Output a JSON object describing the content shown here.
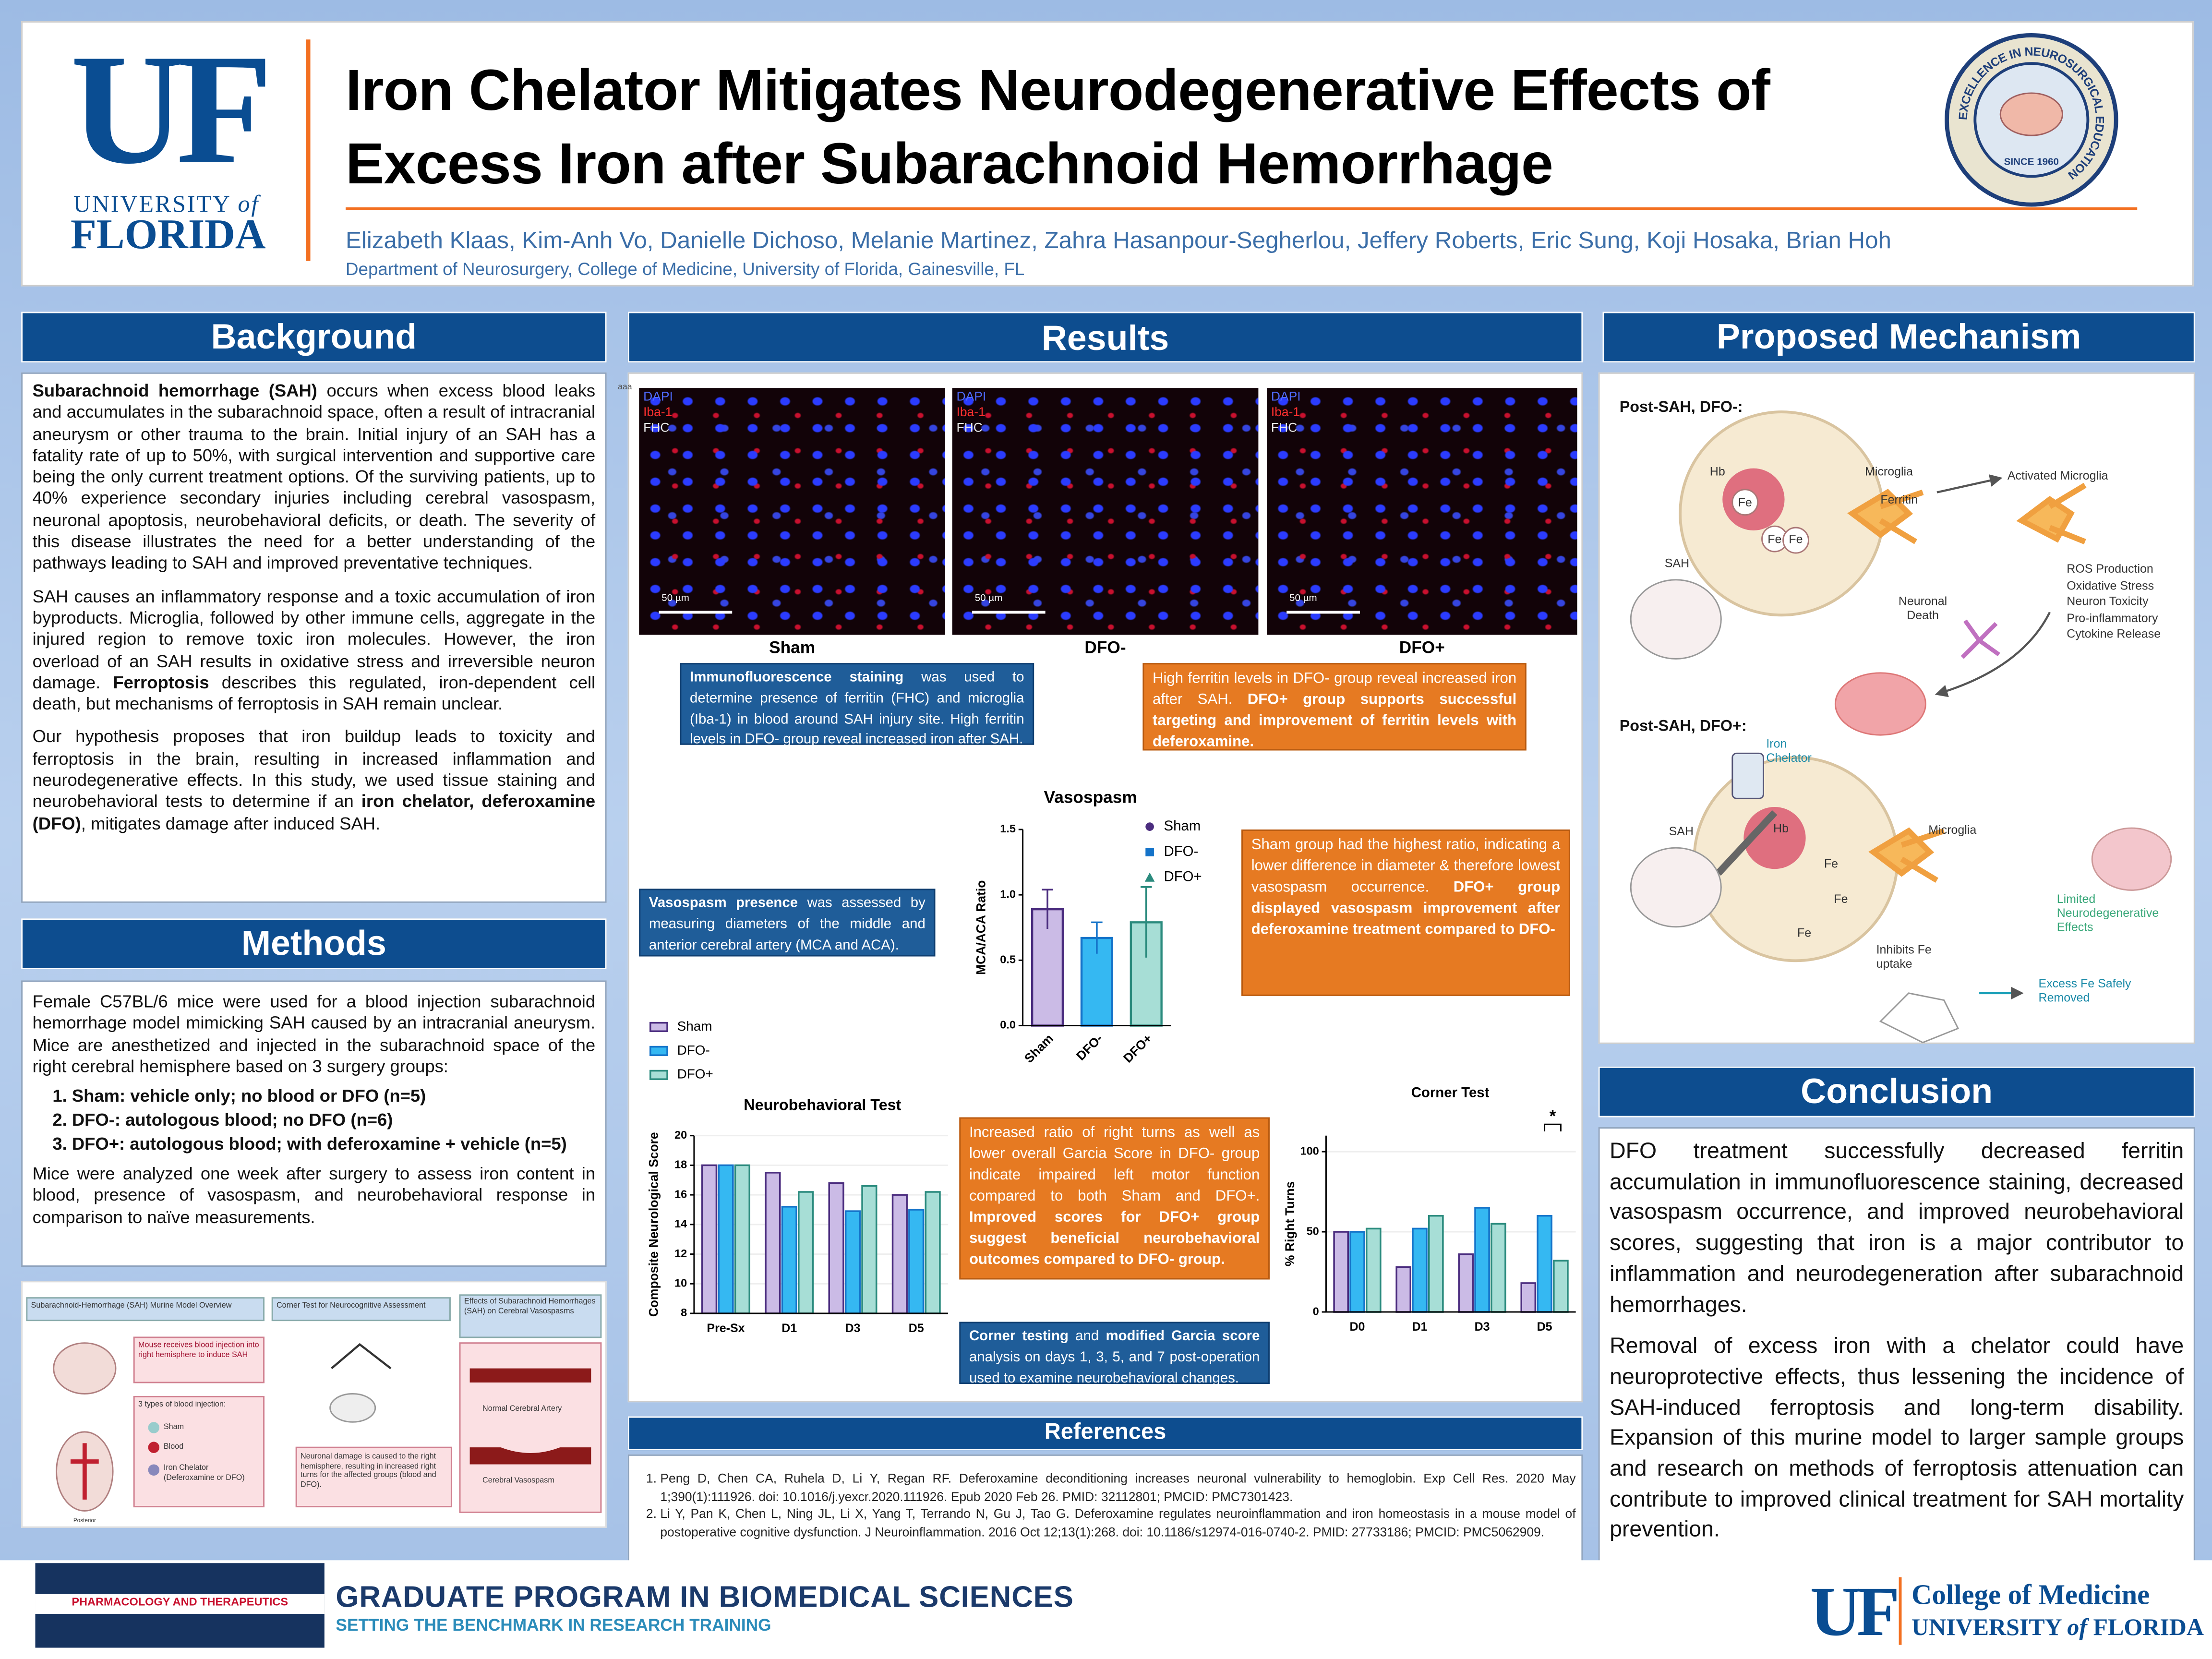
{
  "header": {
    "logo": {
      "mark": "UF",
      "university": "UNIVERSITY",
      "of": "of",
      "florida": "FLORIDA"
    },
    "title": "Iron Chelator Mitigates Neurodegenerative Effects of Excess Iron after Subarachnoid Hemorrhage",
    "authors": "Elizabeth Klaas, Kim-Anh Vo, Danielle Dichoso, Melanie Martinez, Zahra Hasanpour-Segherlou, Jeffery Roberts, Eric Sung, Koji Hosaka, Brian Hoh",
    "affiliation": "Department of Neurosurgery, College of Medicine, University of Florida, Gainesville, FL",
    "seal": {
      "ring": "EXCELLENCE IN NEUROSURGICAL EDUCATION",
      "since": "SINCE 1960"
    }
  },
  "background": {
    "heading": "Background",
    "paragraphs": [
      [
        {
          "bold": "Subarachnoid hemorrhage (SAH)"
        },
        " occurs when excess blood leaks and accumulates in the subarachnoid space, often a result of intracranial aneurysm or other trauma to the brain. Initial injury of an SAH has a fatality rate of up to 50%, with surgical intervention and supportive care being the only current treatment options. Of the surviving patients, up to 40% experience secondary injuries including cerebral vasospasm, neuronal apoptosis, neurobehavioral deficits, or death. The severity of this disease illustrates the need for a better understanding of the pathways leading to SAH and improved preventative techniques."
      ],
      [
        "SAH causes an inflammatory response and a toxic accumulation of iron byproducts. Microglia, followed by other immune cells, aggregate in the injured region to remove toxic iron molecules. However, the iron overload of an SAH results in oxidative stress and irreversible neuron damage. ",
        {
          "bold": "Ferroptosis"
        },
        " describes this regulated, iron-dependent cell death, but mechanisms of ferroptosis in SAH remain unclear."
      ],
      [
        "Our hypothesis proposes that iron buildup leads to toxicity and ferroptosis in the brain, resulting in increased inflammation and neurodegenerative effects. In this study, we used tissue staining and neurobehavioral tests to determine if an ",
        {
          "bold": "iron chelator, deferoxamine (DFO)"
        },
        ", mitigates damage after induced SAH."
      ]
    ]
  },
  "methods": {
    "heading": "Methods",
    "intro": "Female C57BL/6 mice were used for a blood injection subarachnoid hemorrhage model mimicking SAH caused by an intracranial aneurysm. Mice are anesthetized and injected in the subarachnoid space of the right cerebral hemisphere based on 3 surgery groups:",
    "groups": [
      "Sham: vehicle only; no blood or DFO (n=5)",
      "DFO-: autologous blood; no DFO (n=6)",
      "DFO+: autologous blood; with deferoxamine + vehicle (n=5)"
    ],
    "outro": "Mice were analyzed one week after surgery to assess iron content in blood, presence of vasospasm, and neurobehavioral response in comparison to naïve measurements.",
    "figure": {
      "titles": [
        "Subarachnoid-Hemorrhage (SAH) Murine Model Overview",
        "Corner Test for Neurocognitive Assessment",
        "Effects of Subarachnoid Hemorrhages (SAH) on Cerebral Vasospasms"
      ],
      "injection": "Mouse receives blood injection into right hemisphere to induce SAH",
      "types_heading": "3 types of blood injection:",
      "types": [
        "Sham",
        "Blood",
        "Iron Chelator (Deferoxamine or DFO)"
      ],
      "posterior": "Posterior",
      "corner_note": "Neuronal damage is caused to the right hemisphere, resulting in increased right turns for the affected groups (blood and DFO).",
      "arteries": [
        "Normal Cerebral Artery",
        "Cerebral Vasospasm"
      ]
    }
  },
  "results": {
    "heading": "Results",
    "corner_mark": "aaa",
    "panels": [
      {
        "channels": [
          "DAPI",
          "Iba-1",
          "FHC"
        ],
        "scale": "50 µm",
        "caption": "Sham"
      },
      {
        "channels": [
          "DAPI",
          "Iba-1",
          "FHC"
        ],
        "scale": "50 µm",
        "caption": "DFO-"
      },
      {
        "channels": [
          "DAPI",
          "Iba-1",
          "FHC"
        ],
        "scale": "50 µm",
        "caption": "DFO+"
      }
    ],
    "notes": [
      [
        {
          "bold": "Immunofluorescence staining"
        },
        " was used to determine presence of ferritin (FHC) and microglia (Iba-1) in blood around SAH injury site. High ferritin levels in DFO- group reveal increased iron after SAH."
      ],
      [
        "High ferritin levels in DFO- group reveal increased iron after SAH. ",
        {
          "bold": "DFO+ group supports successful targeting and improvement of ferritin levels with deferoxamine."
        }
      ],
      [
        {
          "bold": "Vasospasm presence"
        },
        " was assessed by measuring diameters of the middle and anterior cerebral artery (MCA and ACA)."
      ],
      [
        "Sham group had the highest ratio, indicating a lower difference in diameter & therefore lowest vasospasm occurrence. ",
        {
          "bold": "DFO+ group displayed vasospasm improvement after deferoxamine treatment compared to DFO-"
        }
      ],
      [
        "Increased ratio of right turns as well as lower overall Garcia Score in DFO- group indicate impaired left motor function compared to both Sham and DFO+. ",
        {
          "bold": "Improved scores for DFO+ group suggest beneficial neurobehavioral outcomes compared to DFO- group."
        }
      ],
      [
        {
          "bold": "Corner testing"
        },
        " and ",
        {
          "bold": "modified Garcia score"
        },
        " analysis on days 1, 3, 5, and 7 post-operation used to examine neurobehavioral changes."
      ]
    ]
  },
  "chart_data": [
    {
      "type": "bar",
      "title": "Vasospasm",
      "ylabel": "MCA/ACA Ratio",
      "categories": [
        "Sham",
        "DFO-",
        "DFO+"
      ],
      "values": [
        0.89,
        0.67,
        0.79
      ],
      "errors": [
        0.15,
        0.12,
        0.27
      ],
      "colors": [
        "#cbbbe6",
        "#35b8f2",
        "#a7ded6"
      ],
      "edge_colors": [
        "#4b2d7f",
        "#1473c9",
        "#2b8b7e"
      ],
      "ylim": [
        0,
        1.5
      ],
      "yticks": [
        {
          "value": 0,
          "label": "0.0"
        },
        0.5,
        {
          "value": 1,
          "label": "1.0"
        },
        1.5
      ],
      "legend": "right"
    },
    {
      "type": "bar",
      "title": "Neurobehavioral Test",
      "ylabel": "Composite Neurological Score",
      "categories": [
        "Pre-Sx",
        "D1",
        "D3",
        "D5"
      ],
      "series": [
        {
          "name": "Sham",
          "color": "#cbbbe6",
          "edge_color": "#4b2d7f",
          "values": [
            18,
            17.5,
            16.8,
            16
          ]
        },
        {
          "name": "DFO-",
          "color": "#35b8f2",
          "edge_color": "#1473c9",
          "values": [
            18,
            15.2,
            14.9,
            15
          ]
        },
        {
          "name": "DFO+",
          "color": "#a7ded6",
          "edge_color": "#2b8b7e",
          "values": [
            18,
            16.2,
            16.6,
            16.2
          ]
        }
      ],
      "ylim": [
        8,
        20
      ],
      "yticks": [
        8,
        10,
        12,
        14,
        16,
        18,
        20
      ],
      "legend": "upper left"
    },
    {
      "type": "bar",
      "title": "Corner Test",
      "ylabel": "% Right Turns",
      "categories": [
        "D0",
        "D1",
        "D3",
        "D5"
      ],
      "series": [
        {
          "color": "#cbbbe6",
          "edge_color": "#4b2d7f",
          "values": [
            50,
            28,
            36,
            18
          ]
        },
        {
          "color": "#35b8f2",
          "edge_color": "#1473c9",
          "values": [
            50,
            52,
            65,
            60
          ]
        },
        {
          "color": "#a7ded6",
          "edge_color": "#2b8b7e",
          "values": [
            52,
            60,
            55,
            32
          ]
        }
      ],
      "ylim": [
        0,
        110
      ],
      "yticks": [
        0,
        50,
        100
      ],
      "annotation": "*"
    }
  ],
  "references": {
    "heading": "References",
    "items": [
      "Peng D, Chen CA, Ruhela D, Li Y, Regan RF. Deferoxamine deconditioning increases neuronal vulnerability to hemoglobin. Exp Cell Res. 2020 May 1;390(1):111926. doi: 10.1016/j.yexcr.2020.111926. Epub 2020 Feb 26. PMID: 32112801; PMCID: PMC7301423.",
      "Li Y, Pan K, Chen L, Ning JL, Li X, Yang T, Terrando N, Gu J, Tao G. Deferoxamine regulates neuroinflammation and iron homeostasis in a mouse model of postoperative cognitive dysfunction. J Neuroinflammation. 2016 Oct 12;13(1):268. doi: 10.1186/s12974-016-0740-2. PMID: 27733186; PMCID: PMC5062909."
    ]
  },
  "mechanism": {
    "heading": "Proposed Mechanism",
    "labels": [
      "Post-SAH, DFO-:",
      "Hb",
      "Fe",
      "Fe",
      "Fe",
      "Microglia",
      "Ferritin",
      "Activated Microglia",
      "SAH",
      "Neuronal Death",
      "Post-SAH, DFO+:",
      "Iron Chelator",
      "SAH",
      "Hb",
      "Microglia",
      "Fe",
      "Fe",
      "Fe",
      "Limited Neurodegenerative Effects",
      "Inhibits Fe uptake",
      "Excess Fe Safely Removed"
    ],
    "effects": [
      "ROS Production",
      "Oxidative Stress",
      "Neuron Toxicity",
      "Pro-inflammatory",
      "Cytokine Release"
    ]
  },
  "conclusion": {
    "heading": "Conclusion",
    "paragraphs": [
      "DFO treatment successfully decreased ferritin accumulation in immunofluorescence staining, decreased vasospasm occurrence, and improved neurobehavioral scores, suggesting that iron is a major contributor to inflammation and neurodegeneration after subarachnoid hemorrhages.",
      "Removal of excess iron with a chelator could have neuroprotective effects, thus lessening the incidence of SAH-induced ferroptosis and long-term disability. Expansion of this murine model to larger sample groups and research on methods of ferroptosis attenuation can contribute to improved clinical treatment for SAH mortality prevention."
    ]
  },
  "footer": {
    "department": "PHARMACOLOGY AND THERAPEUTICS",
    "program": "GRADUATE PROGRAM IN BIOMEDICAL SCIENCES",
    "tagline": "SETTING THE BENCHMARK IN RESEARCH TRAINING",
    "college": {
      "mark": "UF",
      "name": "College of Medicine",
      "university": "UNIVERSITY",
      "of": "of",
      "florida": "FLORIDA"
    }
  }
}
